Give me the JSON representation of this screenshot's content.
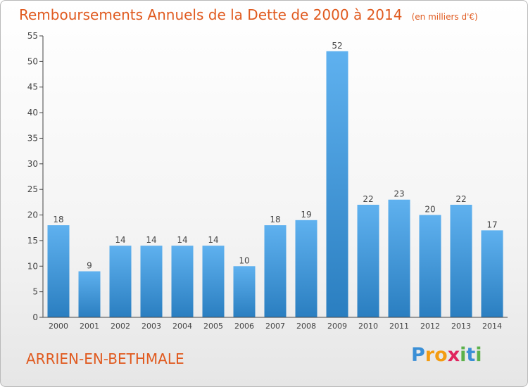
{
  "header": {
    "title": "Remboursements Annuels de la Dette de 2000 à 2014",
    "unit": "(en milliers d'€)"
  },
  "footer": {
    "commune": "ARRIEN-EN-BETHMALE",
    "brand": "Proxiti"
  },
  "colors": {
    "title": "#e05a1f",
    "bar_top": "#5fb1ef",
    "bar_bottom": "#2a7ec0",
    "axis": "#444444",
    "grid_tick": "#444444"
  },
  "chart_data": {
    "type": "bar",
    "title": "Remboursements Annuels de la Dette de 2000 à 2014",
    "subtitle": "(en milliers d'€)",
    "xlabel": "",
    "ylabel": "",
    "categories": [
      "2000",
      "2001",
      "2002",
      "2003",
      "2004",
      "2005",
      "2006",
      "2007",
      "2008",
      "2009",
      "2010",
      "2011",
      "2012",
      "2013",
      "2014"
    ],
    "values": [
      18,
      9,
      14,
      14,
      14,
      14,
      10,
      18,
      19,
      52,
      22,
      23,
      20,
      22,
      17
    ],
    "data_labels": [
      "18",
      "9",
      "14",
      "14",
      "14",
      "14",
      "10",
      "18",
      "19",
      "52",
      "22",
      "23",
      "20",
      "22",
      "17"
    ],
    "ylim": [
      0,
      55
    ],
    "yticks": [
      0,
      5,
      10,
      15,
      20,
      25,
      30,
      35,
      40,
      45,
      50,
      55
    ],
    "grid": false,
    "legend": "none"
  }
}
